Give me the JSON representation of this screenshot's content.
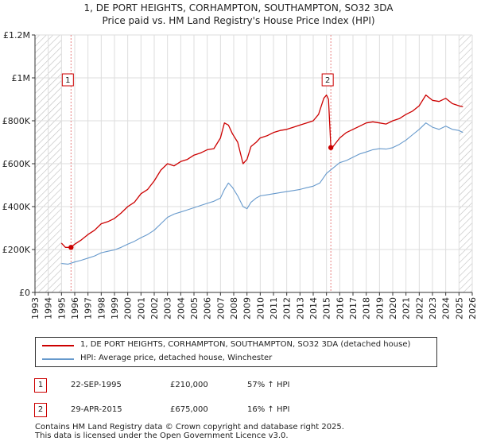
{
  "title_line1": "1, DE PORT HEIGHTS, CORHAMPTON, SOUTHAMPTON, SO32 3DA",
  "title_line2": "Price paid vs. HM Land Registry's House Price Index (HPI)",
  "colors": {
    "red": "#cc0000",
    "blue": "#6699cc",
    "hatch": "#bbbbbb",
    "marker": "#cc0000"
  },
  "chart_data": {
    "type": "line",
    "x_range": [
      1993,
      2026
    ],
    "ylim": [
      0,
      1200000
    ],
    "y_ticks": [
      0,
      200000,
      400000,
      600000,
      800000,
      1000000,
      1200000
    ],
    "y_tick_labels": [
      "£0",
      "£200K",
      "£400K",
      "£600K",
      "£800K",
      "£1M",
      "£1.2M"
    ],
    "x_ticks": [
      1993,
      1994,
      1995,
      1996,
      1997,
      1998,
      1999,
      2000,
      2001,
      2002,
      2003,
      2004,
      2005,
      2006,
      2007,
      2008,
      2009,
      2010,
      2011,
      2012,
      2013,
      2014,
      2015,
      2016,
      2017,
      2018,
      2019,
      2020,
      2021,
      2022,
      2023,
      2024,
      2025,
      2026
    ],
    "x_tick_labels": [
      "1993",
      "1994",
      "1995",
      "1996",
      "1997",
      "1998",
      "1999",
      "2000",
      "2001",
      "2002",
      "2003",
      "2004",
      "2005",
      "2006",
      "2007",
      "2008",
      "2009",
      "2010",
      "2011",
      "2012",
      "2013",
      "2014",
      "2015",
      "2016",
      "2017",
      "2018",
      "2019",
      "2020",
      "2021",
      "2022",
      "2023",
      "2024",
      "2025",
      "2026"
    ],
    "hatched_before": 1995.0,
    "hatched_after": 2025.0,
    "series": [
      {
        "name": "1, DE PORT HEIGHTS, CORHAMPTON, SOUTHAMPTON, SO32 3DA (detached house)",
        "color": "#cc0000",
        "x": [
          1995.0,
          1995.3,
          1995.72,
          1996.0,
          1996.5,
          1997.0,
          1997.5,
          1998.0,
          1998.5,
          1999.0,
          1999.5,
          2000.0,
          2000.5,
          2001.0,
          2001.5,
          2002.0,
          2002.5,
          2003.0,
          2003.5,
          2004.0,
          2004.5,
          2005.0,
          2005.5,
          2006.0,
          2006.5,
          2007.0,
          2007.3,
          2007.6,
          2007.9,
          2008.3,
          2008.7,
          2009.0,
          2009.3,
          2009.7,
          2010.0,
          2010.5,
          2011.0,
          2011.5,
          2012.0,
          2012.5,
          2013.0,
          2013.5,
          2014.0,
          2014.4,
          2014.8,
          2015.0,
          2015.15,
          2015.33,
          2015.5,
          2016.0,
          2016.5,
          2017.0,
          2017.5,
          2018.0,
          2018.5,
          2019.0,
          2019.5,
          2020.0,
          2020.5,
          2021.0,
          2021.5,
          2022.0,
          2022.5,
          2023.0,
          2023.5,
          2024.0,
          2024.5,
          2025.0,
          2025.3
        ],
        "values": [
          230000,
          210000,
          210000,
          225000,
          245000,
          270000,
          290000,
          320000,
          330000,
          345000,
          370000,
          400000,
          420000,
          460000,
          480000,
          520000,
          570000,
          600000,
          590000,
          610000,
          620000,
          640000,
          650000,
          665000,
          670000,
          720000,
          790000,
          780000,
          740000,
          700000,
          600000,
          620000,
          680000,
          700000,
          720000,
          730000,
          745000,
          755000,
          760000,
          770000,
          780000,
          790000,
          800000,
          830000,
          905000,
          920000,
          900000,
          675000,
          680000,
          720000,
          745000,
          760000,
          775000,
          790000,
          795000,
          790000,
          785000,
          800000,
          810000,
          830000,
          845000,
          870000,
          920000,
          895000,
          890000,
          905000,
          880000,
          870000,
          865000
        ]
      },
      {
        "name": "HPI: Average price, detached house, Winchester",
        "color": "#6699cc",
        "x": [
          1995.0,
          1995.5,
          1996.0,
          1996.5,
          1997.0,
          1997.5,
          1998.0,
          1998.5,
          1999.0,
          1999.5,
          2000.0,
          2000.5,
          2001.0,
          2001.5,
          2002.0,
          2002.5,
          2003.0,
          2003.5,
          2004.0,
          2004.5,
          2005.0,
          2005.5,
          2006.0,
          2006.5,
          2007.0,
          2007.3,
          2007.6,
          2007.9,
          2008.3,
          2008.7,
          2009.0,
          2009.3,
          2009.7,
          2010.0,
          2010.5,
          2011.0,
          2011.5,
          2012.0,
          2012.5,
          2013.0,
          2013.5,
          2014.0,
          2014.5,
          2015.0,
          2015.5,
          2016.0,
          2016.5,
          2017.0,
          2017.5,
          2018.0,
          2018.5,
          2019.0,
          2019.5,
          2020.0,
          2020.5,
          2021.0,
          2021.5,
          2022.0,
          2022.5,
          2023.0,
          2023.5,
          2024.0,
          2024.5,
          2025.0,
          2025.3
        ],
        "values": [
          135000,
          132000,
          142000,
          150000,
          160000,
          170000,
          185000,
          192000,
          198000,
          210000,
          225000,
          238000,
          255000,
          270000,
          290000,
          320000,
          350000,
          365000,
          375000,
          385000,
          395000,
          405000,
          415000,
          425000,
          440000,
          480000,
          510000,
          490000,
          450000,
          400000,
          390000,
          420000,
          440000,
          450000,
          455000,
          460000,
          465000,
          470000,
          475000,
          480000,
          488000,
          495000,
          510000,
          555000,
          580000,
          605000,
          615000,
          630000,
          645000,
          655000,
          665000,
          670000,
          668000,
          675000,
          690000,
          710000,
          735000,
          760000,
          790000,
          770000,
          760000,
          775000,
          760000,
          755000,
          745000
        ]
      }
    ],
    "sales": [
      {
        "label": "1",
        "x": 1995.72,
        "value": 210000
      },
      {
        "label": "2",
        "x": 2015.33,
        "value": 675000
      }
    ]
  },
  "legend": {
    "item1": "1, DE PORT HEIGHTS, CORHAMPTON, SOUTHAMPTON, SO32 3DA (detached house)",
    "item2": "HPI: Average price, detached house, Winchester"
  },
  "transactions": [
    {
      "num": "1",
      "date": "22-SEP-1995",
      "price": "£210,000",
      "hpi": "57% ↑ HPI"
    },
    {
      "num": "2",
      "date": "29-APR-2015",
      "price": "£675,000",
      "hpi": "16% ↑ HPI"
    }
  ],
  "footer": {
    "line1": "Contains HM Land Registry data © Crown copyright and database right 2025.",
    "line2": "This data is licensed under the Open Government Licence v3.0."
  }
}
